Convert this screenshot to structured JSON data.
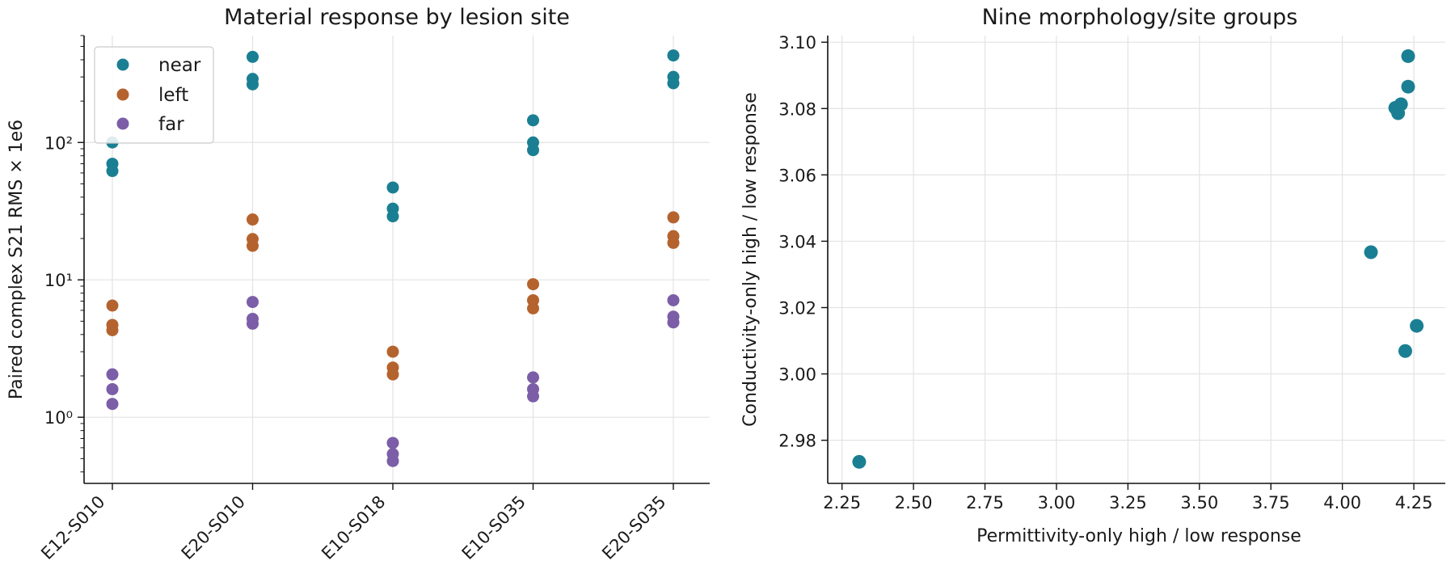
{
  "colors": {
    "near": "#1b7f93",
    "left": "#b5632e",
    "far": "#7b5ea7",
    "scatter": "#1b7f93"
  },
  "chart_data": [
    {
      "type": "scatter",
      "title": "Material response by lesion site",
      "xlabel": "",
      "ylabel": "Paired complex S21 RMS × 1e6",
      "yscale": "log",
      "ylim": [
        0.33,
        600
      ],
      "categories": [
        "E12-S010",
        "E20-S010",
        "E10-S018",
        "E10-S035",
        "E20-S035"
      ],
      "ytick_values": [
        1,
        10,
        100
      ],
      "ytick_labels": [
        "10⁰",
        "10¹",
        "10²"
      ],
      "grid": true,
      "legend_position": "top-left",
      "series": [
        {
          "name": "near",
          "values": [
            [
              100,
              70,
              62
            ],
            [
              420,
              290,
              265
            ],
            [
              47,
              33,
              29
            ],
            [
              145,
              100,
              88
            ],
            [
              430,
              300,
              270
            ]
          ]
        },
        {
          "name": "left",
          "values": [
            [
              6.5,
              4.7,
              4.3
            ],
            [
              27.5,
              19.8,
              17.7
            ],
            [
              3.0,
              2.3,
              2.05
            ],
            [
              9.3,
              7.1,
              6.2
            ],
            [
              28.5,
              20.8,
              18.6
            ]
          ]
        },
        {
          "name": "far",
          "values": [
            [
              2.05,
              1.6,
              1.25
            ],
            [
              6.9,
              5.2,
              4.8
            ],
            [
              0.65,
              0.54,
              0.48
            ],
            [
              1.95,
              1.6,
              1.42
            ],
            [
              7.1,
              5.4,
              4.9
            ]
          ]
        }
      ]
    },
    {
      "type": "scatter",
      "title": "Nine morphology/site groups",
      "xlabel": "Permittivity-only high / low response",
      "ylabel": "Conductivity-only high / low response",
      "xlim": [
        2.2,
        4.36
      ],
      "ylim": [
        2.967,
        3.102
      ],
      "xticks": [
        2.25,
        2.5,
        2.75,
        3.0,
        3.25,
        3.5,
        3.75,
        4.0,
        4.25
      ],
      "xtick_labels": [
        "2.25",
        "2.50",
        "2.75",
        "3.00",
        "3.25",
        "3.50",
        "3.75",
        "4.00",
        "4.25"
      ],
      "yticks": [
        2.98,
        3.0,
        3.02,
        3.04,
        3.06,
        3.08,
        3.1
      ],
      "ytick_labels": [
        "2.98",
        "3.00",
        "3.02",
        "3.04",
        "3.06",
        "3.08",
        "3.10"
      ],
      "grid": true,
      "points": [
        {
          "x": 2.31,
          "y": 2.9735
        },
        {
          "x": 4.1,
          "y": 3.0367
        },
        {
          "x": 4.22,
          "y": 3.0069
        },
        {
          "x": 4.26,
          "y": 3.0145
        },
        {
          "x": 4.185,
          "y": 3.0802
        },
        {
          "x": 4.195,
          "y": 3.0786
        },
        {
          "x": 4.205,
          "y": 3.0813
        },
        {
          "x": 4.23,
          "y": 3.0866
        },
        {
          "x": 4.23,
          "y": 3.0958
        }
      ]
    }
  ]
}
